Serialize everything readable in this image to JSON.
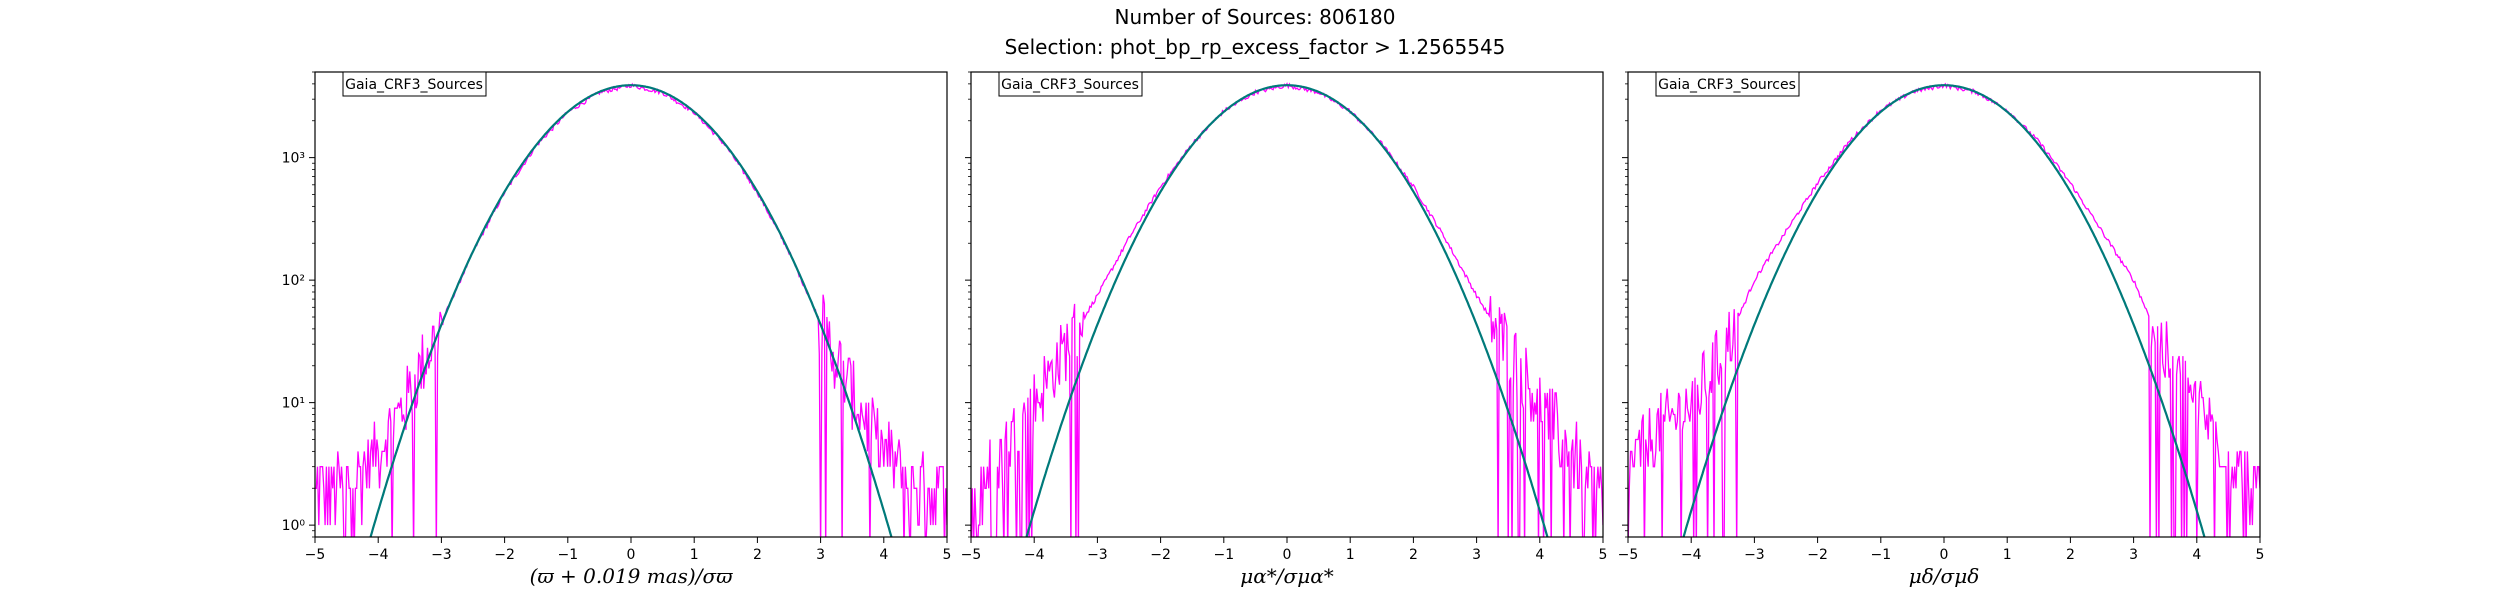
{
  "figure": {
    "title_line1": "Number of Sources: 806180",
    "title_line2": "Selection: phot_bp_rp_excess_factor > 1.2565545"
  },
  "colors": {
    "histogram": "#ff00ff",
    "fit_dark": "#007a7a",
    "fit_blue": "#1f77b4",
    "axes": "#000000"
  },
  "chart_data": [
    {
      "type": "line",
      "legend": "Gaia_CRF3_Sources",
      "xlabel": "(ϖ + 0.019 mas)/σϖ",
      "xlim": [
        -5,
        5
      ],
      "ylim": [
        0.8,
        5000
      ],
      "yscale": "log",
      "xticks": [
        "−5",
        "−4",
        "−3",
        "−2",
        "−1",
        "0",
        "1",
        "2",
        "3",
        "4",
        "5"
      ],
      "yticks": [
        "10⁰",
        "10¹",
        "10²",
        "10³"
      ],
      "peak": 3900,
      "series": [
        {
          "role": "histogram",
          "x": [
            -5.0,
            -4.5,
            -4.0,
            -3.5,
            -3.0,
            -2.5,
            -2.0,
            -1.5,
            -1.0,
            -0.5,
            0.0,
            0.5,
            1.0,
            1.5,
            2.0,
            2.5,
            3.0,
            3.5,
            4.0,
            4.5,
            5.0
          ],
          "values": [
            2,
            2,
            4,
            12,
            45,
            170,
            520,
            1250,
            2350,
            3400,
            3900,
            3400,
            2350,
            1250,
            520,
            170,
            45,
            12,
            4,
            2,
            2
          ]
        },
        {
          "role": "fit",
          "x": [
            -4.4,
            -4.0,
            -3.5,
            -3.0,
            -2.5,
            -2.0,
            -1.5,
            -1.0,
            -0.5,
            0.0,
            0.5,
            1.0,
            1.5,
            2.0,
            2.5,
            3.0,
            3.5,
            4.0,
            4.4
          ],
          "values": [
            0.8,
            1.3,
            8.5,
            43,
            171,
            528,
            1265,
            2366,
            3443,
            3900,
            3443,
            2366,
            1265,
            528,
            171,
            43,
            8.5,
            1.3,
            0.8
          ]
        }
      ]
    },
    {
      "type": "line",
      "legend": "Gaia_CRF3_Sources",
      "xlabel": "μα*/σμα*",
      "xlim": [
        -5,
        5
      ],
      "ylim": [
        0.8,
        5000
      ],
      "yscale": "log",
      "xticks": [
        "−5",
        "−4",
        "−3",
        "−2",
        "−1",
        "0",
        "1",
        "2",
        "3",
        "4",
        "5"
      ],
      "yticks": [
        "10⁰",
        "10¹",
        "10²",
        "10³"
      ],
      "peak": 3900,
      "series": [
        {
          "role": "histogram",
          "x": [
            -5.0,
            -4.5,
            -4.0,
            -3.5,
            -3.0,
            -2.5,
            -2.0,
            -1.5,
            -1.0,
            -0.5,
            0.0,
            0.5,
            1.0,
            1.5,
            2.0,
            2.5,
            3.0,
            3.5,
            4.0,
            4.5,
            5.0
          ],
          "values": [
            1.5,
            4,
            10,
            28,
            75,
            220,
            580,
            1300,
            2400,
            3420,
            3900,
            3420,
            2400,
            1300,
            580,
            220,
            75,
            28,
            10,
            4,
            1.5
          ]
        },
        {
          "role": "fit",
          "x": [
            -4.5,
            -4.0,
            -3.5,
            -3.0,
            -2.5,
            -2.0,
            -1.5,
            -1.0,
            -0.5,
            0.0,
            0.5,
            1.0,
            1.5,
            2.0,
            2.5,
            3.0,
            3.5,
            4.0,
            4.5
          ],
          "values": [
            0.8,
            1.8,
            9,
            44,
            170,
            520,
            1250,
            2350,
            3440,
            3900,
            3440,
            2350,
            1250,
            520,
            170,
            44,
            9,
            1.8,
            0.8
          ]
        }
      ]
    },
    {
      "type": "line",
      "legend": "Gaia_CRF3_Sources",
      "xlabel": "μδ/σμδ",
      "xlim": [
        -5,
        5
      ],
      "ylim": [
        0.8,
        5000
      ],
      "yscale": "log",
      "xticks": [
        "−5",
        "−4",
        "−3",
        "−2",
        "−1",
        "0",
        "1",
        "2",
        "3",
        "4",
        "5"
      ],
      "yticks": [
        "10⁰",
        "10¹",
        "10²",
        "10³"
      ],
      "peak": 3900,
      "series": [
        {
          "role": "histogram",
          "x": [
            -5.0,
            -4.5,
            -4.0,
            -3.5,
            -3.0,
            -2.5,
            -2.0,
            -1.5,
            -1.0,
            -0.5,
            0.0,
            0.5,
            1.0,
            1.5,
            2.0,
            2.5,
            3.0,
            3.5,
            4.0,
            4.5,
            5.0
          ],
          "values": [
            3,
            6,
            10,
            25,
            100,
            250,
            620,
            1350,
            2450,
            3450,
            3900,
            3450,
            2450,
            1350,
            620,
            250,
            100,
            25,
            10,
            4,
            1.5
          ]
        },
        {
          "role": "fit",
          "x": [
            -4.5,
            -4.0,
            -3.5,
            -3.0,
            -2.5,
            -2.0,
            -1.5,
            -1.0,
            -0.5,
            0.0,
            0.5,
            1.0,
            1.5,
            2.0,
            2.5,
            3.0,
            3.5,
            4.0,
            4.5
          ],
          "values": [
            0.8,
            1.5,
            8.7,
            43,
            171,
            528,
            1265,
            2366,
            3443,
            3900,
            3443,
            2366,
            1265,
            528,
            171,
            43,
            8.7,
            1.5,
            0.8
          ]
        }
      ]
    }
  ]
}
